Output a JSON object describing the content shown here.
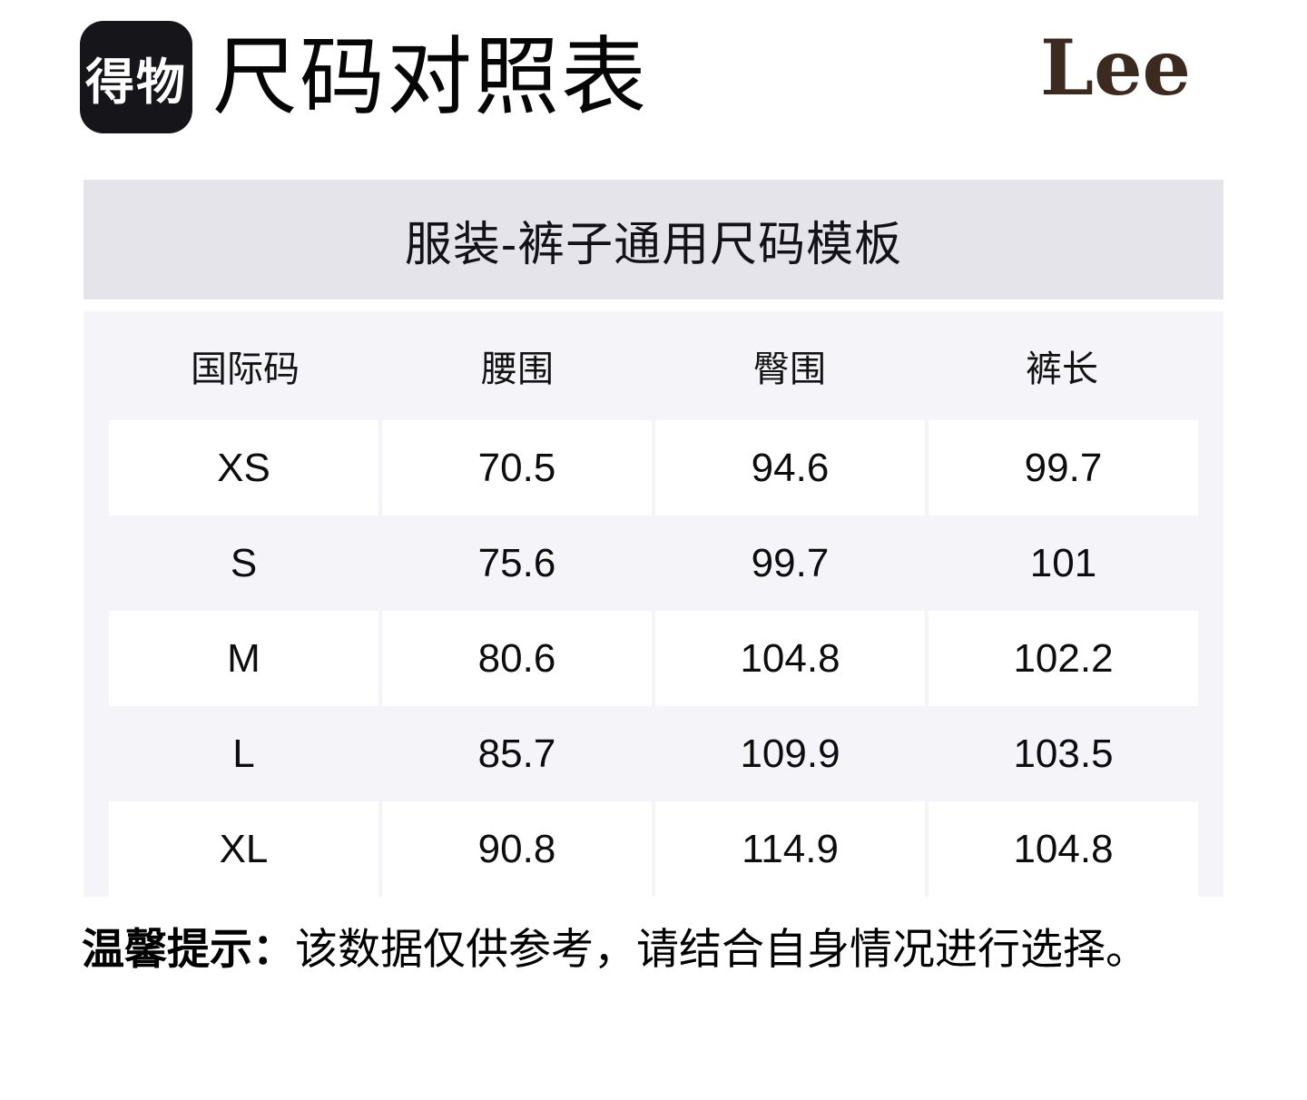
{
  "header": {
    "logo_text": "得物",
    "title": "尺码对照表",
    "brand": "Lee"
  },
  "banner": {
    "title": "服装-裤子通用尺码模板"
  },
  "chart_data": {
    "type": "table",
    "title": "服装-裤子通用尺码模板",
    "columns": [
      "国际码",
      "腰围",
      "臀围",
      "裤长"
    ],
    "rows": [
      {
        "size": "XS",
        "values": [
          "70.5",
          "94.6",
          "99.7"
        ]
      },
      {
        "size": "S",
        "values": [
          "75.6",
          "99.7",
          "101"
        ]
      },
      {
        "size": "M",
        "values": [
          "80.6",
          "104.8",
          "102.2"
        ]
      },
      {
        "size": "L",
        "values": [
          "85.7",
          "109.9",
          "103.5"
        ]
      },
      {
        "size": "XL",
        "values": [
          "90.8",
          "114.9",
          "104.8"
        ]
      }
    ]
  },
  "size_table": {
    "columns": [
      "国际码",
      "腰围",
      "臀围",
      "裤长"
    ],
    "rows": [
      {
        "size": "XS",
        "values": [
          "70.5",
          "94.6",
          "99.7"
        ]
      },
      {
        "size": "S",
        "values": [
          "75.6",
          "99.7",
          "101"
        ]
      },
      {
        "size": "M",
        "values": [
          "80.6",
          "104.8",
          "102.2"
        ]
      },
      {
        "size": "L",
        "values": [
          "85.7",
          "109.9",
          "103.5"
        ]
      },
      {
        "size": "XL",
        "values": [
          "90.8",
          "114.9",
          "104.8"
        ]
      }
    ]
  },
  "footer": {
    "tip_label": "温馨提示：",
    "tip_text": "该数据仅供参考，请结合自身情况进行选择。"
  },
  "colors": {
    "banner_bg": "#e5e4ea",
    "table_bg": "#f5f4f8",
    "cell_bg": "#ffffff",
    "logo_bg": "#15151a",
    "lee_brand": "#3d2a1f",
    "text": "#0d0d0d"
  }
}
